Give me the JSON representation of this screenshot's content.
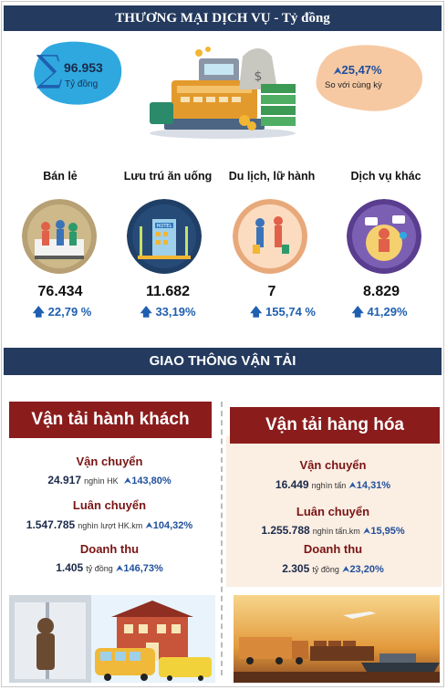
{
  "trade": {
    "title": "THƯƠNG MẠI DỊCH VỤ - Tỷ đồng",
    "total_value": "96.953",
    "total_unit": "Tỷ đồng",
    "growth_value": "25,47%",
    "growth_label": "So với cùng kỳ",
    "categories": [
      {
        "label": "Bán lẻ",
        "value": "76.434",
        "change": "22,79 %"
      },
      {
        "label": "Lưu trú ăn uống",
        "value": "11.682",
        "change": "33,19%"
      },
      {
        "label": "Du lịch, lữ hành",
        "value": "7",
        "change": "155,74 %"
      },
      {
        "label": "Dịch vụ khác",
        "value": "8.829",
        "change": "41,29%"
      }
    ]
  },
  "transport": {
    "title": "GIAO THÔNG VẬN TẢI",
    "passenger": {
      "title": "Vận tải hành khách",
      "rows": [
        {
          "label": "Vận chuyển",
          "value": "24.917",
          "unit": "nghìn HK",
          "change": "143,80%"
        },
        {
          "label": "Luân chuyển",
          "value": "1.547.785",
          "unit": "nghìn lượt HK.km",
          "change": "104,32%"
        },
        {
          "label": "Doanh thu",
          "value": "1.405",
          "unit": "tỷ đồng",
          "change": "146,73%"
        }
      ]
    },
    "freight": {
      "title": "Vận tải hàng hóa",
      "rows": [
        {
          "label": "Vận chuyển",
          "value": "16.449",
          "unit": "nghìn tấn",
          "change": "14,31%"
        },
        {
          "label": "Luân chuyển",
          "value": "1.255.788",
          "unit": "nghìn tấn.km",
          "change": "15,95%"
        },
        {
          "label": "Doanh thu",
          "value": "2.305",
          "unit": "tỷ đồng",
          "change": "23,20%"
        }
      ]
    }
  },
  "colors": {
    "navy": "#243a5e",
    "accent_blue": "#1f5fb0",
    "ribbon_red": "#8b1c1c",
    "peach": "#fbeee3"
  }
}
